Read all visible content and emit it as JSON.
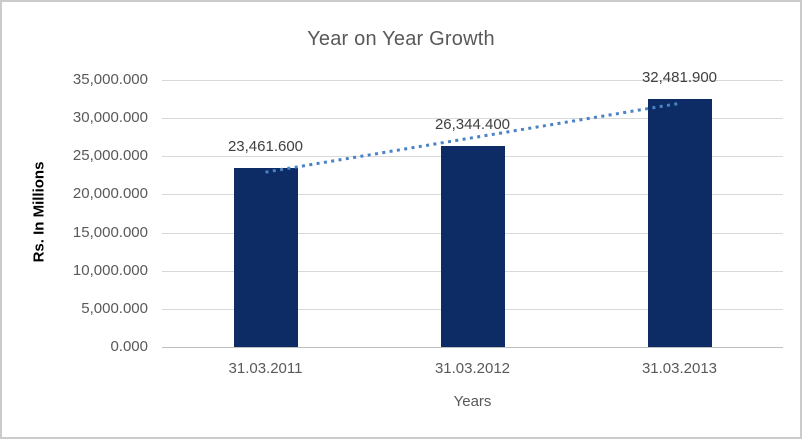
{
  "chart_data": {
    "type": "bar",
    "title": "Year on Year Growth",
    "xlabel": "Years",
    "ylabel": "Rs. In Millions",
    "categories": [
      "31.03.2011",
      "31.03.2012",
      "31.03.2013"
    ],
    "values": [
      23461.6,
      26344.4,
      32481.9
    ],
    "data_labels": [
      "23,461.600",
      "26,344.400",
      "32,481.900"
    ],
    "y_tick_labels": [
      "0.000",
      "5,000.000",
      "10,000.000",
      "15,000.000",
      "20,000.000",
      "25,000.000",
      "30,000.000",
      "35,000.000"
    ],
    "ylim": [
      0,
      35000
    ],
    "grid": true,
    "legend": false,
    "trendline": {
      "type": "linear",
      "style": "dotted"
    },
    "colors": {
      "bar": "#0d2b64",
      "trendline": "#4a82c6",
      "grid": "#d9d9d9",
      "axis": "#bfbfbf",
      "tick_text": "#595959",
      "title_text": "#595959",
      "data_label_text": "#404040",
      "y_title_text": "#000000",
      "border": "#cbcbcb",
      "background": "#ffffff"
    }
  }
}
